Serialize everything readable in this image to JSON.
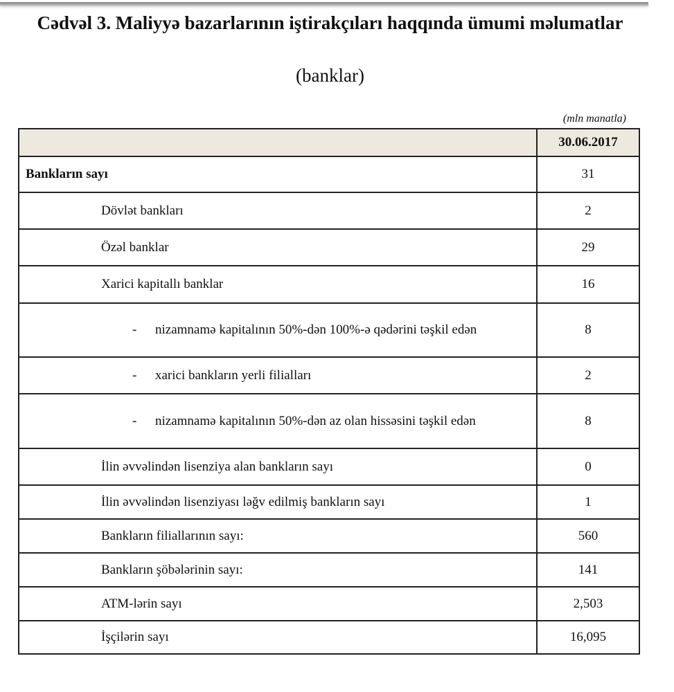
{
  "title": "Cədvəl 3. Maliyyə bazarlarının iştirakçıları haqqında ümumi məlumatlar",
  "subtitle": "(banklar)",
  "unit_note": "(mln manatla)",
  "header_fill_color": "#ede9df",
  "table": {
    "column_header": "30.06.2017",
    "rows": [
      {
        "label": "Bankların sayı",
        "value": "31",
        "level": 0
      },
      {
        "label": "Dövlət bankları",
        "value": "2",
        "level": 1
      },
      {
        "label": "Özəl banklar",
        "value": "29",
        "level": 1
      },
      {
        "label": "Xarici kapitallı banklar",
        "value": "16",
        "level": 1
      },
      {
        "label": "nizamnamə kapitalının 50%-dən 100%-ə qədərini təşkil edən",
        "value": "8",
        "level": 2,
        "bullet": "-"
      },
      {
        "label": "xarici bankların yerli filialları",
        "value": "2",
        "level": 2,
        "bullet": "-"
      },
      {
        "label": "nizamnamə kapitalının 50%-dən az olan hissəsini təşkil edən",
        "value": "8",
        "level": 2,
        "bullet": "-"
      },
      {
        "label": "İlin əvvəlindən lisenziya alan bankların sayı",
        "value": "0",
        "level": 1
      },
      {
        "label": "İlin əvvəlindən lisenziyası ləğv edilmiş bankların sayı",
        "value": "1",
        "level": 1
      },
      {
        "label": "Bankların filiallarının sayı:",
        "value": "560",
        "level": 1
      },
      {
        "label": "Bankların şöbələrinin sayı:",
        "value": "141",
        "level": 1
      },
      {
        "label": "ATM-lərin sayı",
        "value": "2,503",
        "level": 1
      },
      {
        "label": "İşçilərin sayı",
        "value": "16,095",
        "level": 1
      }
    ]
  }
}
